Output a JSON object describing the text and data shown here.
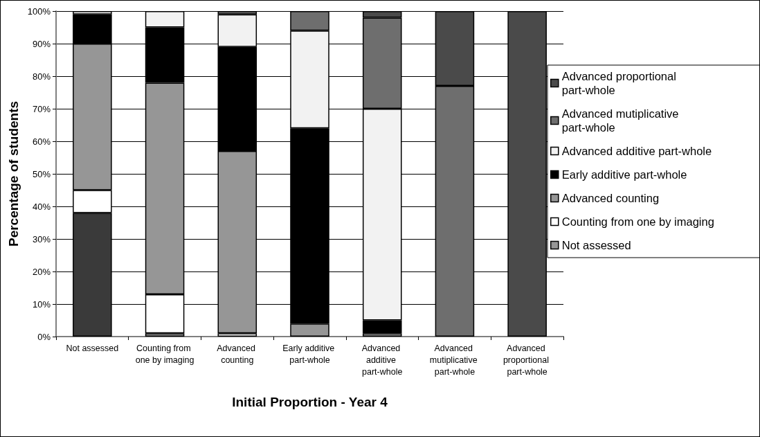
{
  "chart_data": {
    "type": "bar",
    "stacked": true,
    "xlabel": "Initial Proportion - Year 4",
    "ylabel": "Percentage of students",
    "categories": [
      "Not assessed",
      "Counting from one by imaging",
      "Advanced counting",
      "Early additive part-whole",
      "Advanced additive part-whole",
      "Advanced mutiplicative part-whole",
      "Advanced proportional part-whole"
    ],
    "series": [
      {
        "name": "Not assessed",
        "color": "#969696",
        "colors": [
          "#3a3a3a",
          "#969696",
          "#969696",
          "#969696",
          "#969696",
          "#969696",
          "#969696"
        ],
        "values": [
          38,
          1,
          null,
          null,
          null,
          null,
          null
        ]
      },
      {
        "name": "Counting from one by imaging",
        "color": "#ffffff",
        "values": [
          7,
          12,
          1,
          null,
          null,
          null,
          null
        ]
      },
      {
        "name": "Advanced counting",
        "color": "#969696",
        "values": [
          45,
          65,
          56,
          4,
          1,
          null,
          null
        ]
      },
      {
        "name": "Early additive part-whole",
        "color": "#000000",
        "values": [
          9,
          17,
          32,
          60,
          4,
          null,
          null
        ]
      },
      {
        "name": "Advanced additive part-whole",
        "color": "#f2f2f2",
        "values": [
          1,
          5,
          10,
          30,
          65,
          null,
          null
        ]
      },
      {
        "name": "Advanced mutiplicative part-whole",
        "color": "#6e6e6e",
        "values": [
          null,
          null,
          1,
          6,
          28,
          77,
          null
        ]
      },
      {
        "name": "Advanced proportional part-whole",
        "color": "#4a4a4a",
        "values": [
          null,
          null,
          null,
          null,
          2,
          23,
          100
        ]
      }
    ],
    "ylim": [
      0,
      100
    ],
    "yticks": [
      {
        "value": 0,
        "label": "0%"
      },
      {
        "value": 10,
        "label": "10%"
      },
      {
        "value": 20,
        "label": "20%"
      },
      {
        "value": 30,
        "label": "30%"
      },
      {
        "value": 40,
        "label": "40%"
      },
      {
        "value": 50,
        "label": "50%"
      },
      {
        "value": 60,
        "label": "60%"
      },
      {
        "value": 70,
        "label": "70%"
      },
      {
        "value": 80,
        "label": "80%"
      },
      {
        "value": 90,
        "label": "90%"
      },
      {
        "value": 100,
        "label": "100%"
      }
    ],
    "grid": "y",
    "legend": "right"
  }
}
